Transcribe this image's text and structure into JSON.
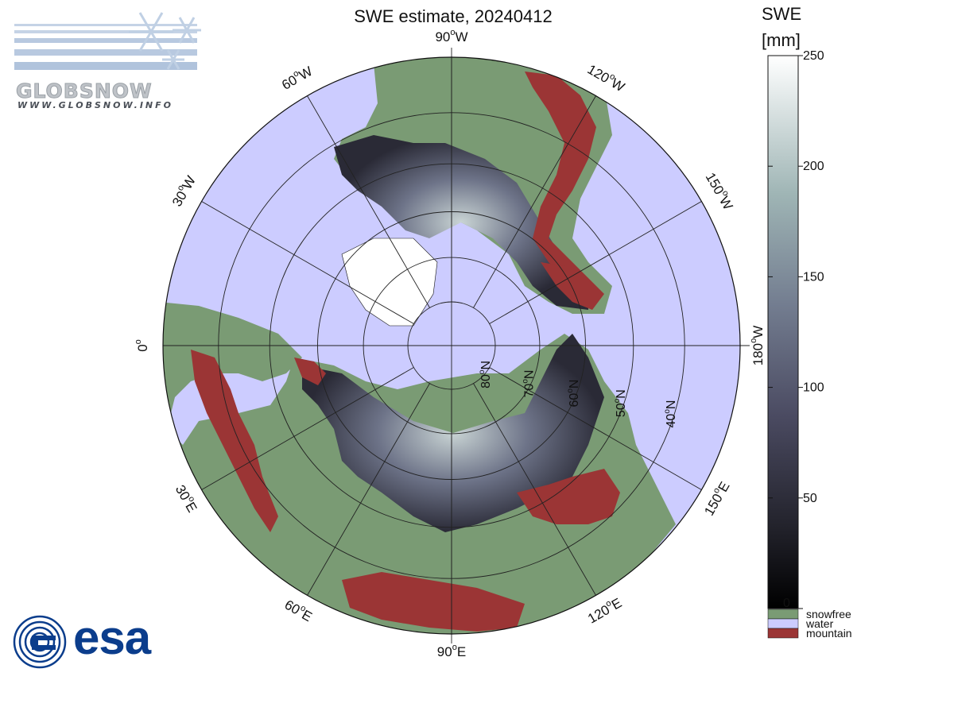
{
  "title": "SWE estimate, 20240412",
  "logos": {
    "globsnow_name": "GLOBSNOW",
    "globsnow_url": "WWW.GLOBSNOW.INFO",
    "esa_name": "esa"
  },
  "map": {
    "projection": "north-polar-stereographic",
    "lon_labels": [
      {
        "id": "w90",
        "deg": "90",
        "hem": "W",
        "lon": -90
      },
      {
        "id": "w60",
        "deg": "60",
        "hem": "W",
        "lon": -60
      },
      {
        "id": "w120",
        "deg": "120",
        "hem": "W",
        "lon": -120
      },
      {
        "id": "w30",
        "deg": "30",
        "hem": "W",
        "lon": -30
      },
      {
        "id": "w150",
        "deg": "150",
        "hem": "W",
        "lon": -150
      },
      {
        "id": "zero",
        "deg": "0",
        "hem": "",
        "lon": 0
      },
      {
        "id": "w180",
        "deg": "180",
        "hem": "W",
        "lon": 180
      },
      {
        "id": "e30",
        "deg": "30",
        "hem": "E",
        "lon": 30
      },
      {
        "id": "e150",
        "deg": "150",
        "hem": "E",
        "lon": 150
      },
      {
        "id": "e60",
        "deg": "60",
        "hem": "E",
        "lon": 60
      },
      {
        "id": "e120",
        "deg": "120",
        "hem": "E",
        "lon": 120
      },
      {
        "id": "e90",
        "deg": "90",
        "hem": "E",
        "lon": 90
      }
    ],
    "lat_labels": [
      {
        "id": "n80",
        "deg": "80",
        "hem": "N",
        "lat": 80
      },
      {
        "id": "n70",
        "deg": "70",
        "hem": "N",
        "lat": 70
      },
      {
        "id": "n60",
        "deg": "60",
        "hem": "N",
        "lat": 60
      },
      {
        "id": "n50",
        "deg": "50",
        "hem": "N",
        "lat": 50
      },
      {
        "id": "n40",
        "deg": "40",
        "hem": "N",
        "lat": 40
      }
    ],
    "colors": {
      "water": "#ccccff",
      "snowfree": "#7a9b74",
      "mountain": "#9b3535",
      "snow_low": "#1a1a22",
      "snow_high": "#f5f7f5"
    }
  },
  "colorbar": {
    "title_line1": "SWE",
    "title_line2": "[mm]",
    "ticks": [
      "250",
      "200",
      "150",
      "100",
      "50",
      "0"
    ],
    "tick_values": [
      250,
      200,
      150,
      100,
      50,
      0
    ],
    "min": 0,
    "max": 250,
    "legend": [
      {
        "label": "snowfree",
        "color": "#7a9b74"
      },
      {
        "label": "water",
        "color": "#ccccff"
      },
      {
        "label": "mountain",
        "color": "#9b3535"
      }
    ]
  }
}
